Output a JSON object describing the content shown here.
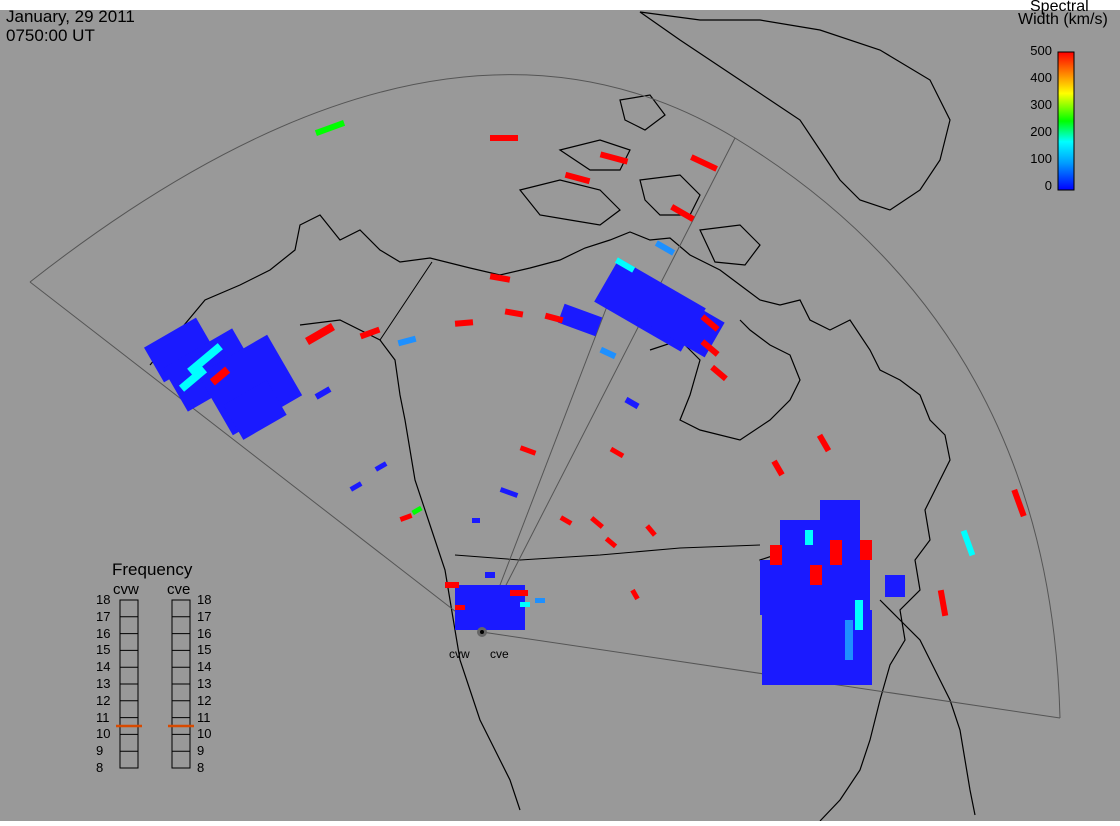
{
  "header": {
    "date": "January, 29 2011",
    "time": "0750:00 UT"
  },
  "colorbar": {
    "title_line1": "Spectral",
    "title_line2": "Width (km/s)",
    "ticks": [
      "500",
      "400",
      "300",
      "200",
      "100",
      "0"
    ],
    "min": 0,
    "max": 500
  },
  "frequency_panel": {
    "title": "Frequency",
    "radars": [
      "cvw",
      "cve"
    ],
    "ticks": [
      "18",
      "17",
      "16",
      "15",
      "14",
      "13",
      "12",
      "11",
      "10",
      "9",
      "8"
    ],
    "values_mhz": [
      10.5,
      10.5
    ],
    "marker_color": "#d84a00"
  },
  "sites": [
    {
      "label": "cvw"
    },
    {
      "label": "cve"
    }
  ],
  "colors": {
    "background": "#999999",
    "outline": "#000000",
    "fov": "#555555"
  }
}
